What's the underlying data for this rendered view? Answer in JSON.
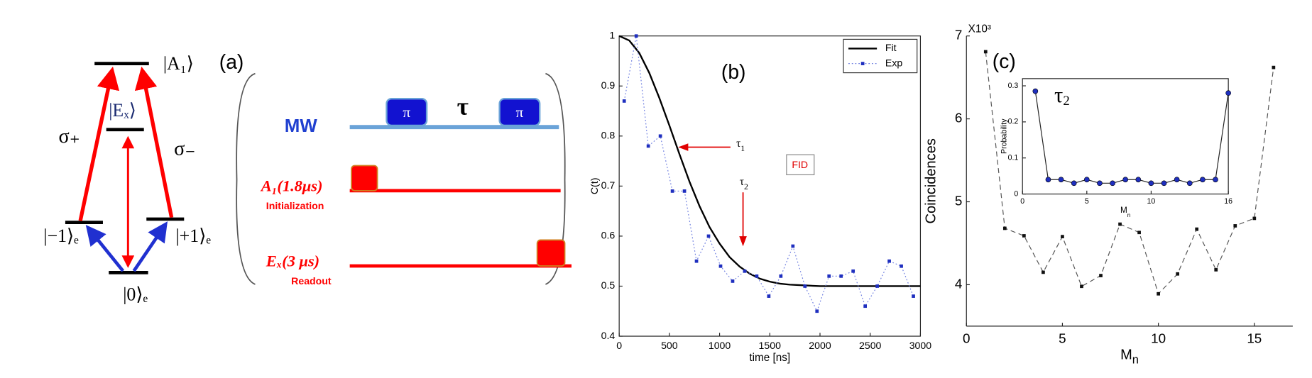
{
  "diagram": {
    "levels": {
      "a1": "|A₁⟩",
      "ex": "|Eₓ⟩",
      "m1": "|−1⟩ₑ",
      "p1": "|+1⟩ₑ",
      "zero": "|0⟩ₑ"
    },
    "sigma_plus": "σ₊",
    "sigma_minus": "σ₋",
    "panel_label": "(a)",
    "mw": "MW",
    "pi1": "π",
    "tau": "τ",
    "pi2": "π",
    "a1_pulse": "A₁(1.8μs)",
    "init": "Initialization",
    "ex_pulse": "Eₓ(3 μs)",
    "readout": "Readout"
  },
  "chart_data": [
    {
      "type": "line",
      "panel_label": "(b)",
      "xlabel": "time [ns]",
      "ylabel": "C(t)",
      "xlim": [
        0,
        3000
      ],
      "ylim": [
        0.4,
        1
      ],
      "xticks": [
        0,
        500,
        1000,
        1500,
        2000,
        2500,
        3000
      ],
      "yticks": [
        0.4,
        0.5,
        0.6,
        0.7,
        0.8,
        0.9,
        1
      ],
      "box": true,
      "legend": "upper right",
      "series": [
        {
          "name": "Fit",
          "color": "#000000",
          "linestyle": "solid",
          "marker": "none",
          "x": [
            0,
            100,
            200,
            300,
            400,
            500,
            600,
            700,
            800,
            900,
            1000,
            1100,
            1200,
            1300,
            1400,
            1500,
            1600,
            1700,
            1800,
            2000,
            2500,
            3000
          ],
          "values": [
            1.0,
            0.991,
            0.966,
            0.926,
            0.876,
            0.821,
            0.764,
            0.709,
            0.66,
            0.618,
            0.585,
            0.558,
            0.539,
            0.525,
            0.515,
            0.509,
            0.505,
            0.503,
            0.502,
            0.5,
            0.5,
            0.5
          ]
        },
        {
          "name": "Exp",
          "color": "#6f7fe0",
          "marker_color": "#1f2fbf",
          "linestyle": "dotted",
          "marker": "square",
          "x": [
            50,
            170,
            290,
            410,
            530,
            650,
            770,
            890,
            1010,
            1130,
            1250,
            1370,
            1490,
            1610,
            1730,
            1850,
            1970,
            2090,
            2210,
            2330,
            2450,
            2570,
            2690,
            2810,
            2930
          ],
          "values": [
            0.87,
            1.0,
            0.78,
            0.8,
            0.69,
            0.69,
            0.55,
            0.6,
            0.54,
            0.51,
            0.53,
            0.52,
            0.48,
            0.52,
            0.58,
            0.5,
            0.45,
            0.52,
            0.52,
            0.53,
            0.46,
            0.5,
            0.55,
            0.54,
            0.48
          ]
        }
      ],
      "annotations": [
        {
          "text": "τ",
          "sub": "1"
        },
        {
          "text": "τ",
          "sub": "2"
        },
        {
          "text": "FID"
        }
      ]
    },
    {
      "type": "line",
      "panel_label": "(c)",
      "xlabel": "M",
      "xlabel_sub": "n",
      "ylabel": "Coincidences",
      "multiplier": "X10³",
      "xlim": [
        0,
        17
      ],
      "ylim": [
        3.5,
        7
      ],
      "xticks": [
        0,
        5,
        10,
        15
      ],
      "yticks": [
        4,
        5,
        6,
        7
      ],
      "box": false,
      "series": [
        {
          "color": "#555555",
          "marker_color": "#111111",
          "linestyle": "dashed",
          "marker": "square",
          "x": [
            1,
            2,
            3,
            4,
            5,
            6,
            7,
            8,
            9,
            10,
            11,
            12,
            13,
            14,
            15,
            16
          ],
          "values": [
            6.81,
            4.68,
            4.59,
            4.15,
            4.58,
            3.98,
            4.11,
            4.73,
            4.63,
            3.89,
            4.13,
            4.67,
            4.18,
            4.71,
            4.8,
            6.62
          ]
        }
      ]
    },
    {
      "type": "line",
      "xlabel": "M",
      "xlabel_sub": "n",
      "ylabel": "Probability",
      "annotation": {
        "text": "τ",
        "sub": "2"
      },
      "xlim": [
        0,
        16
      ],
      "ylim": [
        0,
        0.32
      ],
      "xticks": [
        0,
        5,
        10,
        16
      ],
      "yticks": [
        0,
        0.1,
        0.2,
        0.3
      ],
      "box": true,
      "series": [
        {
          "color": "#222222",
          "marker_color": "#1f2fbf",
          "linestyle": "solid",
          "marker": "circle",
          "x": [
            1,
            2,
            3,
            4,
            5,
            6,
            7,
            8,
            9,
            10,
            11,
            12,
            13,
            14,
            15,
            16
          ],
          "values": [
            0.285,
            0.04,
            0.04,
            0.03,
            0.04,
            0.03,
            0.03,
            0.04,
            0.04,
            0.03,
            0.03,
            0.04,
            0.03,
            0.04,
            0.04,
            0.28
          ]
        }
      ]
    }
  ]
}
